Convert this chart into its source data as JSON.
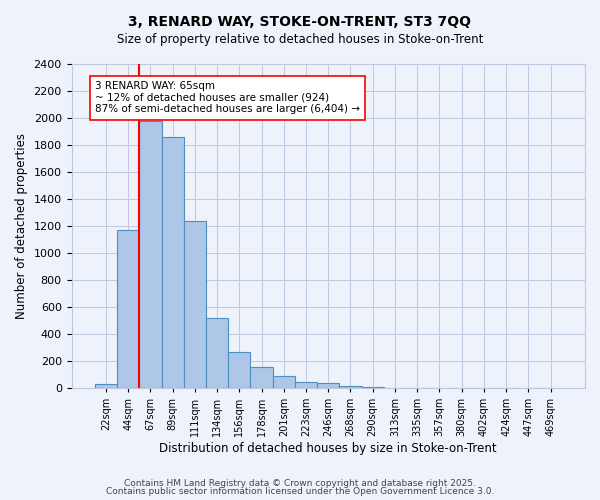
{
  "title1": "3, RENARD WAY, STOKE-ON-TRENT, ST3 7QQ",
  "title2": "Size of property relative to detached houses in Stoke-on-Trent",
  "xlabel": "Distribution of detached houses by size in Stoke-on-Trent",
  "ylabel": "Number of detached properties",
  "bin_labels": [
    "22sqm",
    "44sqm",
    "67sqm",
    "89sqm",
    "111sqm",
    "134sqm",
    "156sqm",
    "178sqm",
    "201sqm",
    "223sqm",
    "246sqm",
    "268sqm",
    "290sqm",
    "313sqm",
    "335sqm",
    "357sqm",
    "380sqm",
    "402sqm",
    "424sqm",
    "447sqm",
    "469sqm"
  ],
  "bar_values": [
    30,
    1170,
    1980,
    1860,
    1240,
    520,
    270,
    155,
    90,
    45,
    35,
    15,
    5,
    2,
    0,
    0,
    0,
    0,
    0,
    0,
    0
  ],
  "bar_color": "#aec6e8",
  "bar_edge_color": "#4f8fbf",
  "red_line_x": 1.5,
  "annotation_lines": [
    "3 RENARD WAY: 65sqm",
    "~ 12% of detached houses are smaller (924)",
    "87% of semi-detached houses are larger (6,404) →"
  ],
  "footer1": "Contains HM Land Registry data © Crown copyright and database right 2025.",
  "footer2": "Contains public sector information licensed under the Open Government Licence 3.0.",
  "ylim": [
    0,
    2400
  ],
  "yticks": [
    0,
    200,
    400,
    600,
    800,
    1000,
    1200,
    1400,
    1600,
    1800,
    2000,
    2200,
    2400
  ],
  "bg_color": "#eef2fb",
  "grid_color": "#c0c8e0"
}
